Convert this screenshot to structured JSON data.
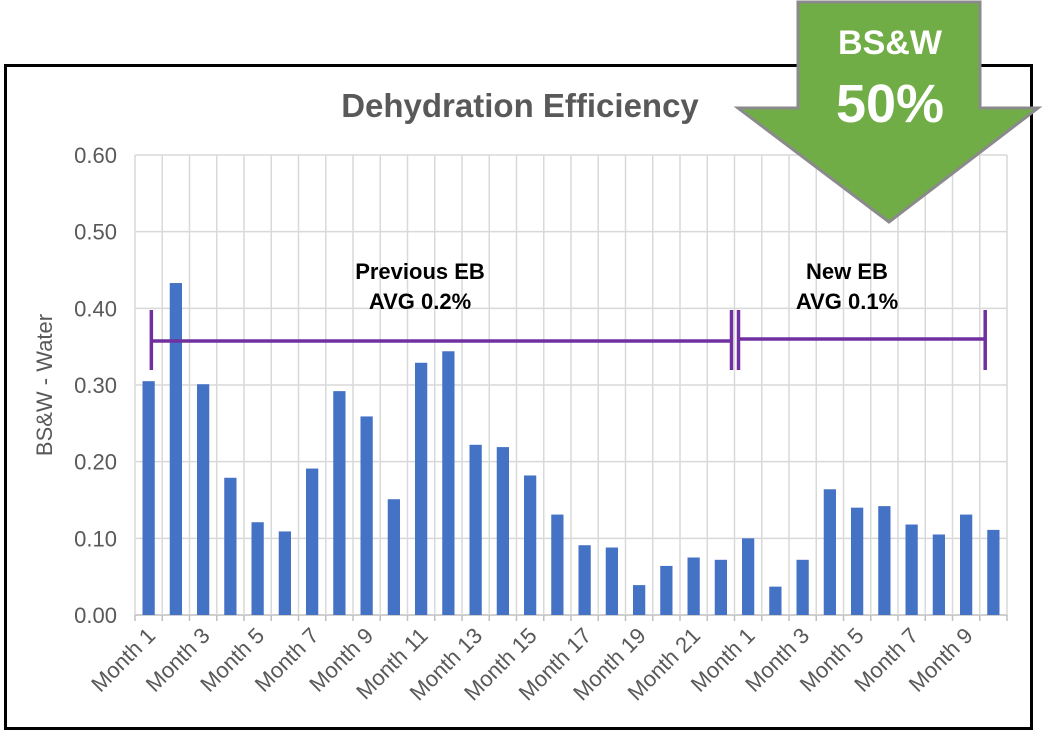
{
  "chart_data": {
    "type": "bar",
    "title": "Dehydration Efficiency",
    "xlabel": "",
    "ylabel": "BS&W - Water",
    "ylim": [
      0,
      0.6
    ],
    "yticks": [
      "0.00",
      "0.10",
      "0.20",
      "0.30",
      "0.40",
      "0.50",
      "0.60"
    ],
    "grid": true,
    "categories": [
      "Month 1",
      "Month 2",
      "Month 3",
      "Month 4",
      "Month 5",
      "Month 6",
      "Month 7",
      "Month 8",
      "Month 9",
      "Month 10",
      "Month 11",
      "Month 12",
      "Month 13",
      "Month 14",
      "Month 15",
      "Month 16",
      "Month 17",
      "Month 18",
      "Month 19",
      "Month 20",
      "Month 21",
      "Month 22",
      "Month 1",
      "Month 2",
      "Month 3",
      "Month 4",
      "Month 5",
      "Month 6",
      "Month 7",
      "Month 8",
      "Month 9",
      "Month 10"
    ],
    "tick_labels_shown": [
      "Month 1",
      "Month 3",
      "Month 5",
      "Month 7",
      "Month 9",
      "Month 11",
      "Month 13",
      "Month 15",
      "Month 17",
      "Month 19",
      "Month 21",
      "Month 1",
      "Month 3",
      "Month 5",
      "Month 7",
      "Month 9"
    ],
    "values": [
      0.305,
      0.433,
      0.301,
      0.179,
      0.121,
      0.109,
      0.191,
      0.292,
      0.259,
      0.151,
      0.329,
      0.344,
      0.222,
      0.219,
      0.182,
      0.131,
      0.091,
      0.088,
      0.039,
      0.064,
      0.075,
      0.072,
      0.1,
      0.037,
      0.072,
      0.164,
      0.14,
      0.142,
      0.118,
      0.105,
      0.131,
      0.111
    ],
    "series_color": "#4472C4",
    "annotations": [
      {
        "line1": "Previous EB",
        "line2": "AVG 0.2%",
        "from_index": 0,
        "to_index": 21
      },
      {
        "line1": "New EB",
        "line2": "AVG 0.1%",
        "from_index": 22,
        "to_index": 31
      }
    ],
    "bracket_color": "#7030A0"
  },
  "callout": {
    "label": "BS&W",
    "value": "50%",
    "fill": "#70AD47",
    "stroke": "#8A8A8A"
  }
}
